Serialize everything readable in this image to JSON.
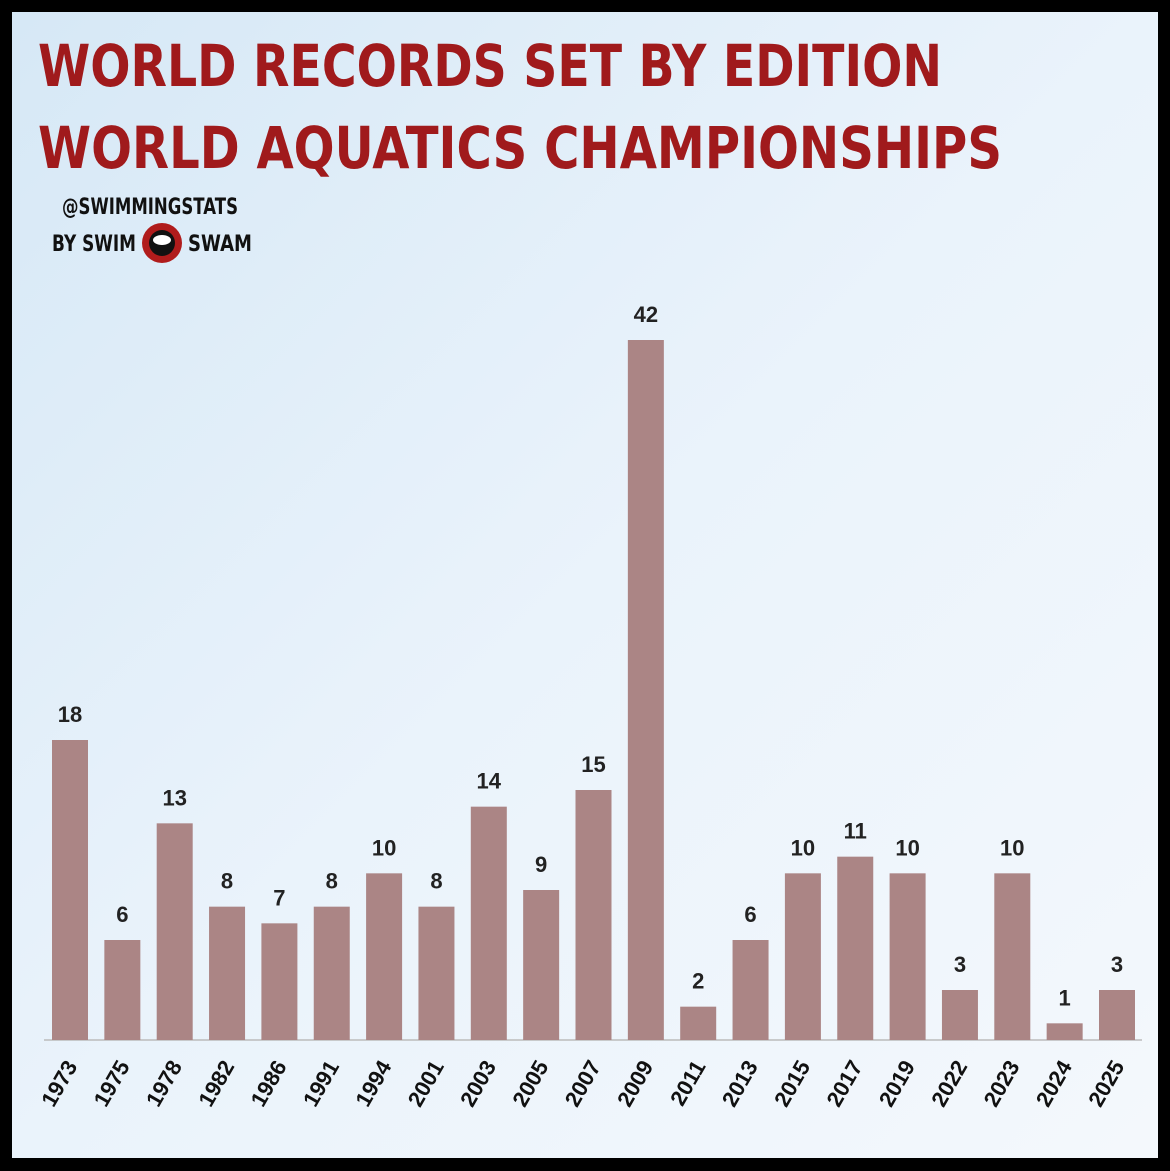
{
  "chart_data": {
    "type": "bar",
    "title": "WORLD RECORDS SET BY EDITION",
    "subtitle": "WORLD AQUATICS CHAMPIONSHIPS",
    "credit": {
      "handle": "@SWIMMINGSTATS",
      "by": "BY SWIM",
      "brand": "SWAM"
    },
    "categories": [
      "1973",
      "1975",
      "1978",
      "1982",
      "1986",
      "1991",
      "1994",
      "2001",
      "2003",
      "2005",
      "2007",
      "2009",
      "2011",
      "2013",
      "2015",
      "2017",
      "2019",
      "2022",
      "2023",
      "2024",
      "2025"
    ],
    "values": [
      18,
      6,
      13,
      8,
      7,
      8,
      10,
      8,
      14,
      9,
      15,
      42,
      2,
      6,
      10,
      11,
      10,
      3,
      10,
      1,
      3
    ],
    "color": "#ab8585"
  }
}
